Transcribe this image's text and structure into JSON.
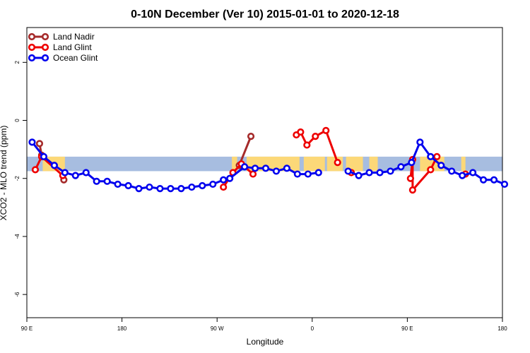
{
  "chart_data": {
    "type": "line",
    "title": "0-10N December (Ver 10)   2015-01-01 to 2020-12-18",
    "xlabel": "Longitude",
    "ylabel": "XCO2 - MLO trend (ppm)",
    "xlim": [
      90,
      540
    ],
    "ylim": [
      -6.8,
      3.2
    ],
    "x_ticks": [
      {
        "value": 90,
        "label": "90 E"
      },
      {
        "value": 180,
        "label": "180"
      },
      {
        "value": 270,
        "label": "90 W"
      },
      {
        "value": 360,
        "label": "0"
      },
      {
        "value": 450,
        "label": "90 E"
      },
      {
        "value": 540,
        "label": "180"
      }
    ],
    "y_ticks": [
      {
        "value": 2,
        "label": "2"
      },
      {
        "value": 0,
        "label": "0"
      },
      {
        "value": -2,
        "label": "-2"
      },
      {
        "value": -4,
        "label": "-4"
      },
      {
        "value": -6,
        "label": "-6"
      }
    ],
    "grid": false,
    "legend_position": "top-left",
    "background_band": {
      "y_range": [
        -1.75,
        -1.25
      ],
      "ocean_color": "#a7bde0",
      "land_color": "#fcd878"
    },
    "land_segments": [
      [
        105,
        126
      ],
      [
        284,
        289
      ],
      [
        298,
        348
      ],
      [
        352,
        372
      ],
      [
        374,
        389
      ],
      [
        392,
        408
      ],
      [
        414,
        422
      ],
      [
        453,
        455
      ],
      [
        462,
        482
      ],
      [
        480,
        485
      ],
      [
        501,
        505
      ]
    ],
    "series": [
      {
        "name": "Land Nadir",
        "color": "#a52a2a",
        "points": [
          [
            102,
            -0.8
          ],
          [
            104,
            -1.2
          ],
          [
            125,
            -2.05
          ],
          [
            291,
            -1.55
          ],
          [
            302,
            -0.55
          ]
        ],
        "segments": [
          [
            0,
            1
          ],
          [
            2,
            2
          ],
          [
            3,
            4
          ]
        ]
      },
      {
        "name": "Land Glint",
        "color": "#ee0000",
        "points": [
          [
            98,
            -1.7
          ],
          [
            104,
            -1.25
          ],
          [
            124,
            -1.9
          ],
          [
            276,
            -2.3
          ],
          [
            285,
            -1.8
          ],
          [
            293,
            -1.5
          ],
          [
            304,
            -1.85
          ],
          [
            345,
            -0.5
          ],
          [
            349,
            -0.4
          ],
          [
            355,
            -0.85
          ],
          [
            363,
            -0.55
          ],
          [
            373,
            -0.35
          ],
          [
            384,
            -1.45
          ],
          [
            397,
            -1.8
          ],
          [
            453,
            -2.0
          ],
          [
            455,
            -1.35
          ],
          [
            455,
            -2.4
          ],
          [
            472,
            -1.7
          ],
          [
            478,
            -1.25
          ],
          [
            505,
            -1.85
          ]
        ],
        "segments": [
          [
            0,
            2
          ],
          [
            3,
            6
          ],
          [
            7,
            12
          ],
          [
            13,
            13
          ],
          [
            14,
            18
          ],
          [
            19,
            19
          ]
        ]
      },
      {
        "name": "Ocean Glint",
        "color": "#0000ee",
        "points": [
          [
            95,
            -0.75
          ],
          [
            106,
            -1.25
          ],
          [
            116,
            -1.55
          ],
          [
            126,
            -1.8
          ],
          [
            136,
            -1.9
          ],
          [
            146,
            -1.8
          ],
          [
            156,
            -2.1
          ],
          [
            166,
            -2.1
          ],
          [
            176,
            -2.2
          ],
          [
            186,
            -2.25
          ],
          [
            196,
            -2.35
          ],
          [
            206,
            -2.3
          ],
          [
            216,
            -2.35
          ],
          [
            226,
            -2.35
          ],
          [
            236,
            -2.35
          ],
          [
            246,
            -2.3
          ],
          [
            256,
            -2.25
          ],
          [
            266,
            -2.2
          ],
          [
            276,
            -2.05
          ],
          [
            282,
            -2.0
          ],
          [
            296,
            -1.6
          ],
          [
            306,
            -1.65
          ],
          [
            316,
            -1.65
          ],
          [
            326,
            -1.75
          ],
          [
            336,
            -1.65
          ],
          [
            346,
            -1.85
          ],
          [
            356,
            -1.85
          ],
          [
            366,
            -1.8
          ],
          [
            394,
            -1.75
          ],
          [
            404,
            -1.9
          ],
          [
            414,
            -1.8
          ],
          [
            424,
            -1.8
          ],
          [
            434,
            -1.75
          ],
          [
            444,
            -1.6
          ],
          [
            454,
            -1.45
          ],
          [
            462,
            -0.75
          ],
          [
            472,
            -1.25
          ],
          [
            482,
            -1.55
          ],
          [
            492,
            -1.75
          ],
          [
            502,
            -1.9
          ],
          [
            512,
            -1.8
          ],
          [
            522,
            -2.05
          ],
          [
            532,
            -2.05
          ],
          [
            542,
            -2.2
          ]
        ],
        "segments": [
          [
            0,
            27
          ],
          [
            28,
            43
          ]
        ]
      }
    ]
  }
}
